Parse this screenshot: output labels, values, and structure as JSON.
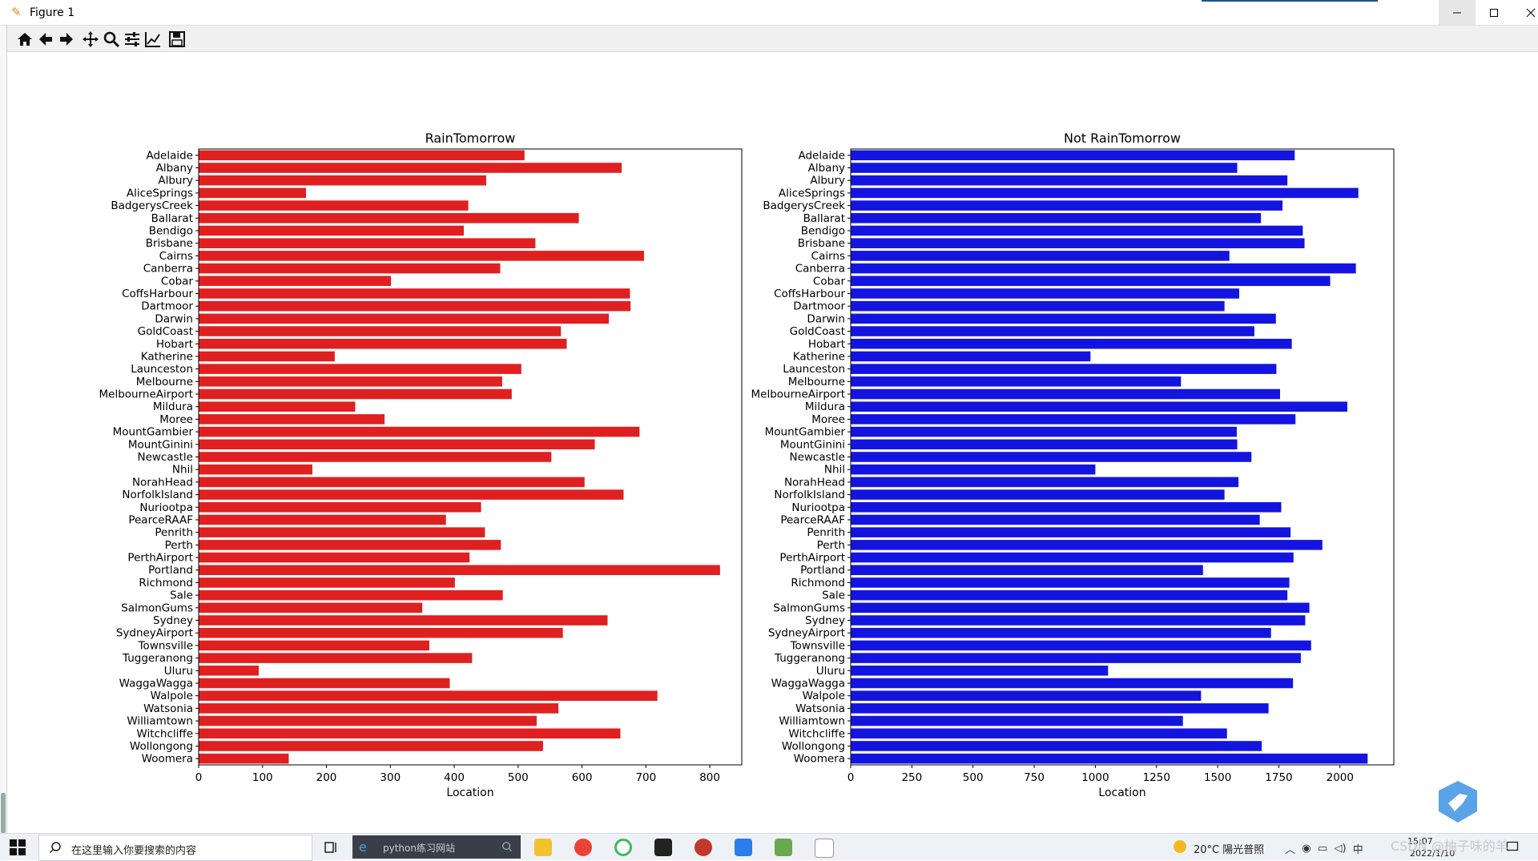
{
  "window": {
    "title": "Figure 1",
    "app_icon": "matplotlib-icon"
  },
  "toolbar": {
    "tools": [
      "home-icon",
      "back-icon",
      "forward-icon",
      "pan-icon",
      "zoom-icon",
      "subplots-icon",
      "axes-edit-icon",
      "save-icon"
    ]
  },
  "chart_data": [
    {
      "type": "bar",
      "orientation": "horizontal",
      "title": "RainTomorrow",
      "xlabel": "Location",
      "ylabel": "",
      "color": "#e02020",
      "xlim": [
        0,
        850
      ],
      "xticks": [
        0,
        100,
        200,
        300,
        400,
        500,
        600,
        700,
        800
      ],
      "categories": [
        "Adelaide",
        "Albany",
        "Albury",
        "AliceSprings",
        "BadgerysCreek",
        "Ballarat",
        "Bendigo",
        "Brisbane",
        "Cairns",
        "Canberra",
        "Cobar",
        "CoffsHarbour",
        "Dartmoor",
        "Darwin",
        "GoldCoast",
        "Hobart",
        "Katherine",
        "Launceston",
        "Melbourne",
        "MelbourneAirport",
        "Mildura",
        "Moree",
        "MountGambier",
        "MountGinini",
        "Newcastle",
        "Nhil",
        "NorahHead",
        "NorfolkIsland",
        "Nuriootpa",
        "PearceRAAF",
        "Penrith",
        "Perth",
        "PerthAirport",
        "Portland",
        "Richmond",
        "Sale",
        "SalmonGums",
        "Sydney",
        "SydneyAirport",
        "Townsville",
        "Tuggeranong",
        "Uluru",
        "WaggaWagga",
        "Walpole",
        "Watsonia",
        "Williamtown",
        "Witchcliffe",
        "Wollongong",
        "Woomera"
      ],
      "values": [
        510,
        662,
        450,
        168,
        422,
        595,
        415,
        527,
        697,
        472,
        301,
        675,
        676,
        642,
        567,
        576,
        213,
        505,
        475,
        490,
        245,
        291,
        690,
        620,
        552,
        178,
        604,
        665,
        442,
        387,
        448,
        473,
        424,
        816,
        401,
        476,
        350,
        640,
        570,
        361,
        428,
        94,
        393,
        718,
        563,
        529,
        660,
        539,
        141
      ]
    },
    {
      "type": "bar",
      "orientation": "horizontal",
      "title": "Not RainTomorrow",
      "xlabel": "Location",
      "ylabel": "",
      "color": "#1414e0",
      "xlim": [
        0,
        2220
      ],
      "xticks": [
        0,
        250,
        500,
        750,
        1000,
        1250,
        1500,
        1750,
        2000
      ],
      "categories": [
        "Adelaide",
        "Albany",
        "Albury",
        "AliceSprings",
        "BadgerysCreek",
        "Ballarat",
        "Bendigo",
        "Brisbane",
        "Cairns",
        "Canberra",
        "Cobar",
        "CoffsHarbour",
        "Dartmoor",
        "Darwin",
        "GoldCoast",
        "Hobart",
        "Katherine",
        "Launceston",
        "Melbourne",
        "MelbourneAirport",
        "Mildura",
        "Moree",
        "MountGambier",
        "MountGinini",
        "Newcastle",
        "Nhil",
        "NorahHead",
        "NorfolkIsland",
        "Nuriootpa",
        "PearceRAAF",
        "Penrith",
        "Perth",
        "PerthAirport",
        "Portland",
        "Richmond",
        "Sale",
        "SalmonGums",
        "Sydney",
        "SydneyAirport",
        "Townsville",
        "Tuggeranong",
        "Uluru",
        "WaggaWagga",
        "Walpole",
        "Watsonia",
        "Williamtown",
        "Witchcliffe",
        "Wollongong",
        "Woomera"
      ],
      "values": [
        1815,
        1580,
        1785,
        2075,
        1765,
        1677,
        1848,
        1855,
        1548,
        2065,
        1960,
        1588,
        1528,
        1738,
        1650,
        1803,
        980,
        1740,
        1350,
        1755,
        2030,
        1818,
        1578,
        1580,
        1638,
        1000,
        1585,
        1528,
        1760,
        1672,
        1798,
        1928,
        1810,
        1440,
        1793,
        1785,
        1875,
        1858,
        1718,
        1882,
        1840,
        1052,
        1808,
        1432,
        1708,
        1358,
        1538,
        1680,
        2113
      ]
    }
  ],
  "taskbar": {
    "search_placeholder": "在这里输入你要搜索的内容",
    "browser_task_label": "python练习网站",
    "weather": "20°C 陽光普照",
    "time": "15:07",
    "date": "2022/1/10",
    "watermark": "CSDN @柚子味的羊"
  }
}
